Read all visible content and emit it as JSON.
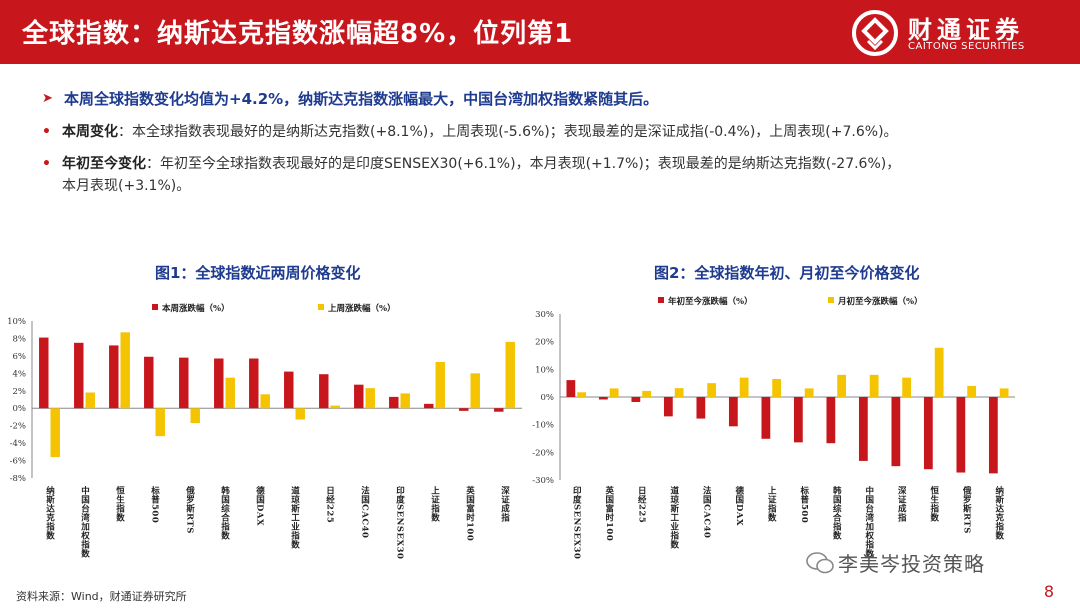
{
  "header": {
    "title": "全球指数：纳斯达克指数涨幅超8%，位列第1",
    "brand_cn": "财通证券",
    "brand_en": "CAITONG SECURITIES"
  },
  "bullets": {
    "main": "本周全球指数变化均值为+4.2%，纳斯达克指数涨幅最大，中国台湾加权指数紧随其后。",
    "weekly_lead": "本周变化",
    "weekly_text": "：本全球指数表现最好的是纳斯达克指数(+8.1%)，上周表现(-5.6%)；表现最差的是深证成指(-0.4%)，上周表现(+7.6%)。",
    "ytd_lead": "年初至今变化",
    "ytd_text_1": "：年初至今全球指数表现最好的是印度SENSEX30(+6.1%)，本月表现(+1.7%)；表现最差的是纳斯达克指数(-27.6%)，",
    "ytd_text_2": "本月表现(+3.1%)。"
  },
  "figures": {
    "fig1_title": "图1：全球指数近两周价格变化",
    "fig2_title": "图2：全球指数年初、月初至今价格变化"
  },
  "colors": {
    "red": "#c8161d",
    "yellow": "#f5c400",
    "navy": "#1f3b8f"
  },
  "chart_data": [
    {
      "type": "bar",
      "categories": [
        "纳斯达克指数",
        "中国台湾加权指数",
        "恒生指数",
        "标普500",
        "俄罗斯RTS",
        "韩国综合指数",
        "德国DAX",
        "道琼斯工业指数",
        "日经225",
        "法国CAC40",
        "印度SENSEX30",
        "上证指数",
        "英国富时100",
        "深证成指"
      ],
      "series": [
        {
          "name": "本周涨跌幅（%）",
          "values": [
            8.1,
            7.5,
            7.2,
            5.9,
            5.8,
            5.7,
            5.7,
            4.2,
            3.9,
            2.7,
            1.3,
            0.5,
            -0.3,
            -0.4
          ]
        },
        {
          "name": "上周涨跌幅（%）",
          "values": [
            -5.6,
            1.8,
            8.7,
            -3.2,
            -1.7,
            3.5,
            1.6,
            -1.3,
            0.3,
            2.3,
            1.7,
            5.3,
            4.0,
            7.6
          ]
        }
      ],
      "yticks": [
        "10%",
        "8%",
        "6%",
        "4%",
        "2%",
        "0%",
        "-2%",
        "-4%",
        "-6%",
        "-8%"
      ],
      "ylim": [
        -8,
        10
      ],
      "legend": "top"
    },
    {
      "type": "bar",
      "categories": [
        "印度SENSEX30",
        "英国富时100",
        "日经225",
        "道琼斯工业指数",
        "法国CAC40",
        "德国DAX",
        "上证指数",
        "标普500",
        "韩国综合指数",
        "中国台湾加权指数",
        "深证成指",
        "恒生指数",
        "俄罗斯RTS",
        "纳斯达克指数"
      ],
      "series": [
        {
          "name": "年初至今涨跌幅（%）",
          "values": [
            6.1,
            -0.9,
            -1.8,
            -7.0,
            -7.8,
            -10.6,
            -15.1,
            -16.4,
            -16.7,
            -23.1,
            -25.0,
            -26.1,
            -27.3,
            -27.6
          ]
        },
        {
          "name": "月初至今涨跌幅（%）",
          "values": [
            1.7,
            3.1,
            2.2,
            3.2,
            5.0,
            7.0,
            6.5,
            3.1,
            8.0,
            8.0,
            7.0,
            17.8,
            4.0,
            3.1
          ]
        }
      ],
      "yticks": [
        "30%",
        "20%",
        "10%",
        "0%",
        "-10%",
        "-20%",
        "-30%"
      ],
      "ylim": [
        -30,
        30
      ],
      "legend": "top"
    }
  ],
  "footer": {
    "source": "资料来源：Wind，财通证券研究所",
    "watermark": "李美岑投资策略",
    "page": "8"
  }
}
